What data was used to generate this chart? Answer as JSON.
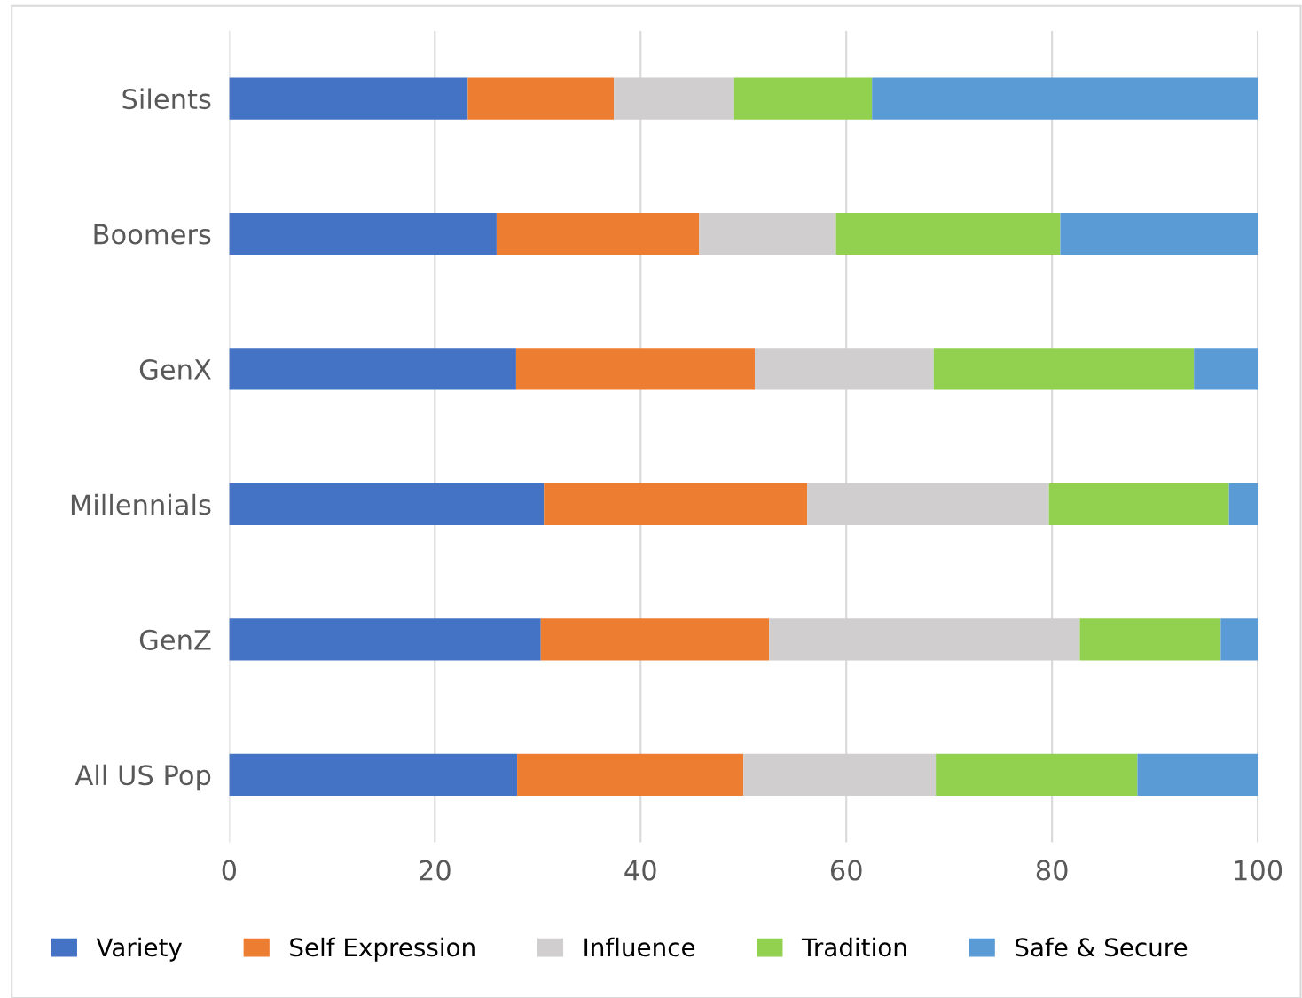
{
  "chart_data": {
    "type": "bar",
    "orientation": "horizontal",
    "stacked": true,
    "categories": [
      "Silents",
      "Boomers",
      "GenX",
      "Millennials",
      "GenZ",
      "All US Pop"
    ],
    "series": [
      {
        "name": "Variety",
        "color": "#4472c4",
        "values": [
          23.2,
          26.0,
          27.9,
          30.6,
          30.3,
          28.0
        ]
      },
      {
        "name": "Self Expression",
        "color": "#ed7d31",
        "values": [
          14.2,
          19.7,
          23.2,
          25.6,
          22.2,
          22.0
        ]
      },
      {
        "name": "Influence",
        "color": "#d0cece",
        "values": [
          11.7,
          13.3,
          17.4,
          23.5,
          30.2,
          18.7
        ]
      },
      {
        "name": "Tradition",
        "color": "#92d050",
        "values": [
          13.4,
          21.8,
          25.3,
          17.5,
          13.7,
          19.6
        ]
      },
      {
        "name": "Safe & Secure",
        "color": "#5b9bd5",
        "values": [
          37.5,
          19.2,
          6.2,
          2.8,
          3.6,
          11.7
        ]
      }
    ],
    "xlim": [
      0,
      100
    ],
    "xticks": [
      0,
      20,
      40,
      60,
      80,
      100
    ],
    "grid": "x",
    "legend": "bottom"
  }
}
